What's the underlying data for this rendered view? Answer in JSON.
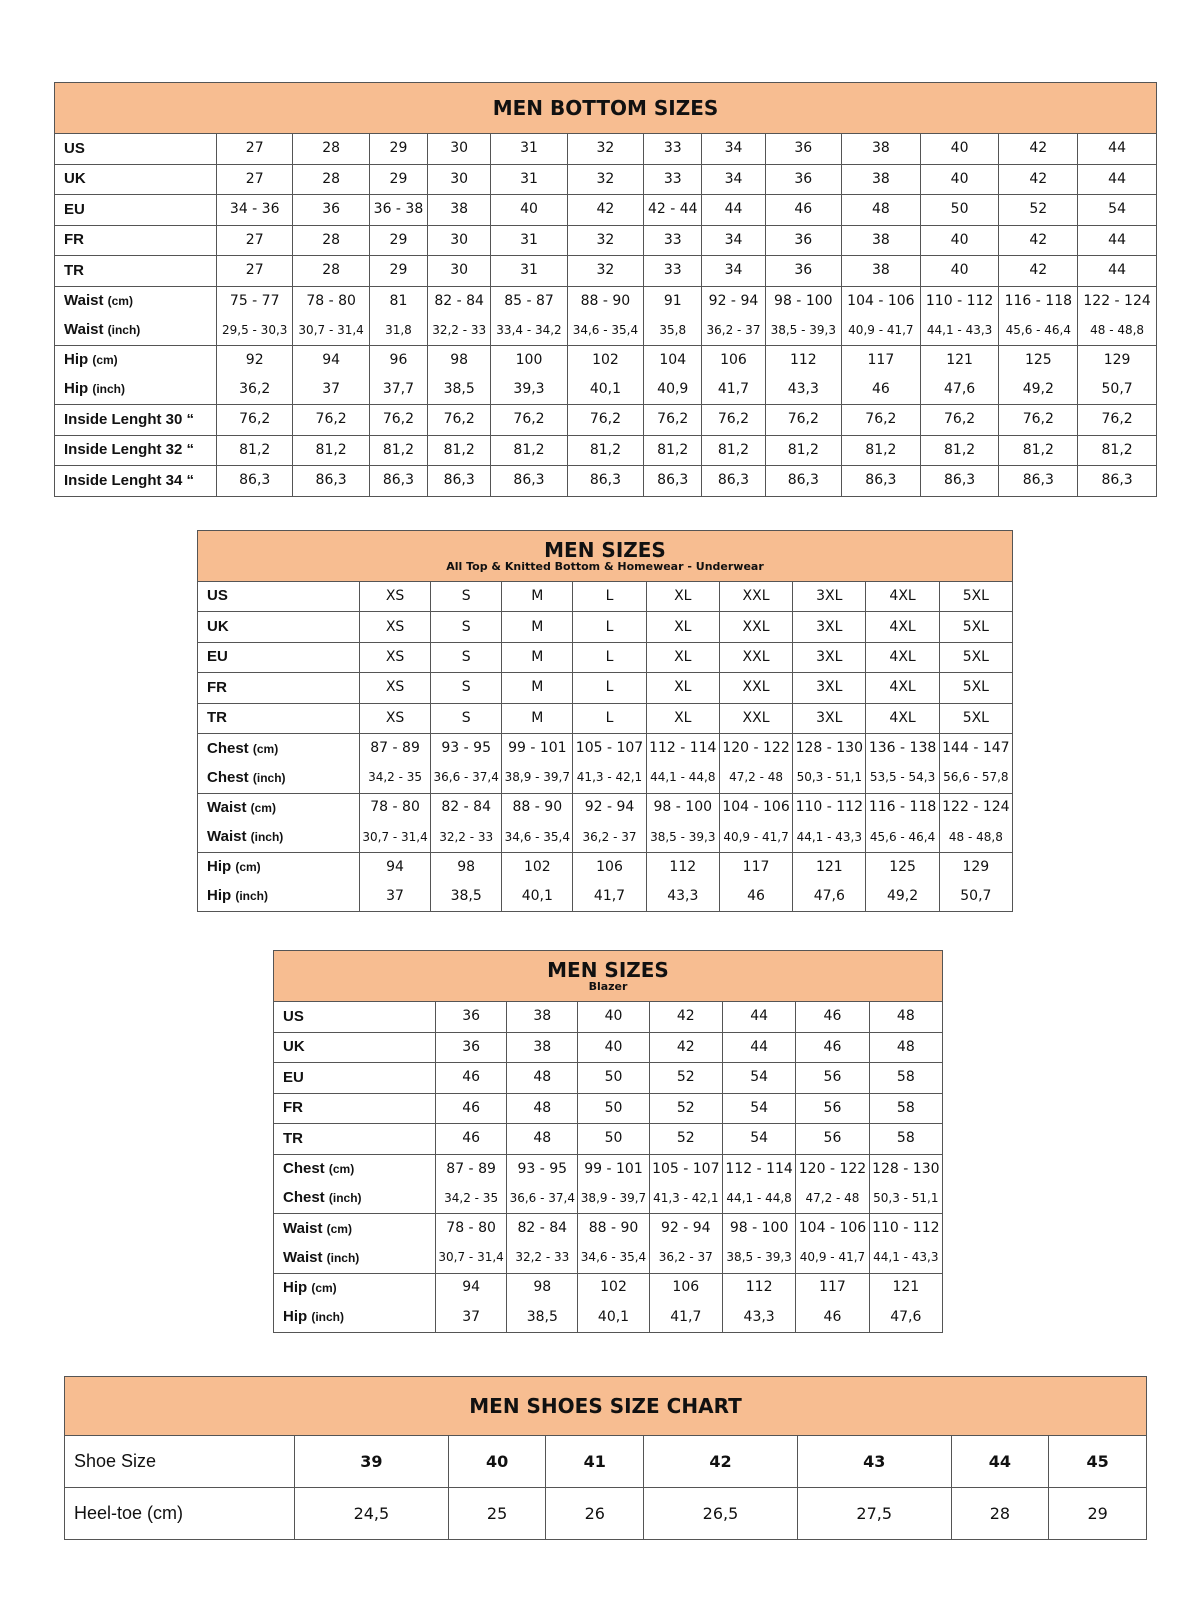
{
  "tables": [
    {
      "title": "MEN BOTTOM SIZES",
      "subtitle": "",
      "simple_rows": [
        {
          "label": "US",
          "values": [
            "27",
            "28",
            "29",
            "30",
            "31",
            "32",
            "33",
            "34",
            "36",
            "38",
            "40",
            "42",
            "44"
          ]
        },
        {
          "label": "UK",
          "values": [
            "27",
            "28",
            "29",
            "30",
            "31",
            "32",
            "33",
            "34",
            "36",
            "38",
            "40",
            "42",
            "44"
          ]
        },
        {
          "label": "EU",
          "values": [
            "34 - 36",
            "36",
            "36 - 38",
            "38",
            "40",
            "42",
            "42 - 44",
            "44",
            "46",
            "48",
            "50",
            "52",
            "54"
          ]
        },
        {
          "label": "FR",
          "values": [
            "27",
            "28",
            "29",
            "30",
            "31",
            "32",
            "33",
            "34",
            "36",
            "38",
            "40",
            "42",
            "44"
          ]
        },
        {
          "label": "TR",
          "values": [
            "27",
            "28",
            "29",
            "30",
            "31",
            "32",
            "33",
            "34",
            "36",
            "38",
            "40",
            "42",
            "44"
          ]
        }
      ],
      "groups": [
        {
          "rows": [
            {
              "label": "Waist",
              "unit": "(cm)",
              "values": [
                "75 - 77",
                "78 - 80",
                "81",
                "82 - 84",
                "85 - 87",
                "88 - 90",
                "91",
                "92 - 94",
                "98 - 100",
                "104 - 106",
                "110 - 112",
                "116 - 118",
                "122 - 124"
              ]
            },
            {
              "label": "Waist",
              "unit": "(inch)",
              "small": true,
              "values": [
                "29,5 - 30,3",
                "30,7 - 31,4",
                "31,8",
                "32,2 - 33",
                "33,4 - 34,2",
                "34,6 - 35,4",
                "35,8",
                "36,2 - 37",
                "38,5 - 39,3",
                "40,9 - 41,7",
                "44,1 - 43,3",
                "45,6 - 46,4",
                "48 - 48,8"
              ]
            }
          ]
        },
        {
          "rows": [
            {
              "label": "Hip",
              "unit": "(cm)",
              "values": [
                "92",
                "94",
                "96",
                "98",
                "100",
                "102",
                "104",
                "106",
                "112",
                "117",
                "121",
                "125",
                "129"
              ]
            },
            {
              "label": "Hip",
              "unit": "(inch)",
              "values": [
                "36,2",
                "37",
                "37,7",
                "38,5",
                "39,3",
                "40,1",
                "40,9",
                "41,7",
                "43,3",
                "46",
                "47,6",
                "49,2",
                "50,7"
              ]
            }
          ]
        }
      ],
      "tail_rows": [
        {
          "label": "Inside Lenght 30 “",
          "values": [
            "76,2",
            "76,2",
            "76,2",
            "76,2",
            "76,2",
            "76,2",
            "76,2",
            "76,2",
            "76,2",
            "76,2",
            "76,2",
            "76,2",
            "76,2"
          ]
        },
        {
          "label": "Inside Lenght 32 “",
          "values": [
            "81,2",
            "81,2",
            "81,2",
            "81,2",
            "81,2",
            "81,2",
            "81,2",
            "81,2",
            "81,2",
            "81,2",
            "81,2",
            "81,2",
            "81,2"
          ]
        },
        {
          "label": "Inside Lenght 34 “",
          "values": [
            "86,3",
            "86,3",
            "86,3",
            "86,3",
            "86,3",
            "86,3",
            "86,3",
            "86,3",
            "86,3",
            "86,3",
            "86,3",
            "86,3",
            "86,3"
          ]
        }
      ]
    },
    {
      "title": "MEN SIZES",
      "subtitle": "All Top & Knitted Bottom & Homewear - Underwear",
      "simple_rows": [
        {
          "label": "US",
          "values": [
            "XS",
            "S",
            "M",
            "L",
            "XL",
            "XXL",
            "3XL",
            "4XL",
            "5XL"
          ]
        },
        {
          "label": "UK",
          "values": [
            "XS",
            "S",
            "M",
            "L",
            "XL",
            "XXL",
            "3XL",
            "4XL",
            "5XL"
          ]
        },
        {
          "label": "EU",
          "values": [
            "XS",
            "S",
            "M",
            "L",
            "XL",
            "XXL",
            "3XL",
            "4XL",
            "5XL"
          ]
        },
        {
          "label": "FR",
          "values": [
            "XS",
            "S",
            "M",
            "L",
            "XL",
            "XXL",
            "3XL",
            "4XL",
            "5XL"
          ]
        },
        {
          "label": "TR",
          "values": [
            "XS",
            "S",
            "M",
            "L",
            "XL",
            "XXL",
            "3XL",
            "4XL",
            "5XL"
          ]
        }
      ],
      "groups": [
        {
          "rows": [
            {
              "label": "Chest",
              "unit": "(cm)",
              "values": [
                "87 - 89",
                "93 - 95",
                "99 - 101",
                "105 - 107",
                "112 - 114",
                "120 - 122",
                "128 - 130",
                "136 - 138",
                "144 - 147"
              ]
            },
            {
              "label": "Chest",
              "unit": "(inch)",
              "small": true,
              "values": [
                "34,2 - 35",
                "36,6 - 37,4",
                "38,9 - 39,7",
                "41,3 - 42,1",
                "44,1 - 44,8",
                "47,2 - 48",
                "50,3 - 51,1",
                "53,5 - 54,3",
                "56,6 - 57,8"
              ]
            }
          ]
        },
        {
          "rows": [
            {
              "label": "Waist",
              "unit": "(cm)",
              "values": [
                "78 - 80",
                "82 - 84",
                "88 - 90",
                "92 - 94",
                "98 - 100",
                "104 - 106",
                "110 - 112",
                "116 - 118",
                "122 - 124"
              ]
            },
            {
              "label": "Waist",
              "unit": "(inch)",
              "small": true,
              "values": [
                "30,7 - 31,4",
                "32,2 - 33",
                "34,6 - 35,4",
                "36,2 - 37",
                "38,5 - 39,3",
                "40,9 - 41,7",
                "44,1 - 43,3",
                "45,6 - 46,4",
                "48 - 48,8"
              ]
            }
          ]
        },
        {
          "rows": [
            {
              "label": "Hip",
              "unit": "(cm)",
              "values": [
                "94",
                "98",
                "102",
                "106",
                "112",
                "117",
                "121",
                "125",
                "129"
              ]
            },
            {
              "label": "Hip",
              "unit": "(inch)",
              "values": [
                "37",
                "38,5",
                "40,1",
                "41,7",
                "43,3",
                "46",
                "47,6",
                "49,2",
                "50,7"
              ]
            }
          ]
        }
      ],
      "tail_rows": []
    },
    {
      "title": "MEN SIZES",
      "subtitle": "Blazer",
      "simple_rows": [
        {
          "label": "US",
          "values": [
            "36",
            "38",
            "40",
            "42",
            "44",
            "46",
            "48"
          ]
        },
        {
          "label": "UK",
          "values": [
            "36",
            "38",
            "40",
            "42",
            "44",
            "46",
            "48"
          ]
        },
        {
          "label": "EU",
          "values": [
            "46",
            "48",
            "50",
            "52",
            "54",
            "56",
            "58"
          ]
        },
        {
          "label": "FR",
          "values": [
            "46",
            "48",
            "50",
            "52",
            "54",
            "56",
            "58"
          ]
        },
        {
          "label": "TR",
          "values": [
            "46",
            "48",
            "50",
            "52",
            "54",
            "56",
            "58"
          ]
        }
      ],
      "groups": [
        {
          "rows": [
            {
              "label": "Chest",
              "unit": "(cm)",
              "values": [
                "87 - 89",
                "93 - 95",
                "99 - 101",
                "105 - 107",
                "112 - 114",
                "120 - 122",
                "128 - 130"
              ]
            },
            {
              "label": "Chest",
              "unit": "(inch)",
              "small": true,
              "values": [
                "34,2 - 35",
                "36,6 - 37,4",
                "38,9 - 39,7",
                "41,3 - 42,1",
                "44,1 - 44,8",
                "47,2 - 48",
                "50,3 - 51,1"
              ]
            }
          ]
        },
        {
          "rows": [
            {
              "label": "Waist",
              "unit": "(cm)",
              "values": [
                "78 - 80",
                "82 - 84",
                "88 - 90",
                "92 - 94",
                "98 - 100",
                "104 - 106",
                "110 - 112"
              ]
            },
            {
              "label": "Waist",
              "unit": "(inch)",
              "small": true,
              "values": [
                "30,7 - 31,4",
                "32,2 - 33",
                "34,6 - 35,4",
                "36,2 - 37",
                "38,5 - 39,3",
                "40,9 - 41,7",
                "44,1 - 43,3"
              ]
            }
          ]
        },
        {
          "rows": [
            {
              "label": "Hip",
              "unit": "(cm)",
              "values": [
                "94",
                "98",
                "102",
                "106",
                "112",
                "117",
                "121"
              ]
            },
            {
              "label": "Hip",
              "unit": "(inch)",
              "values": [
                "37",
                "38,5",
                "40,1",
                "41,7",
                "43,3",
                "46",
                "47,6"
              ]
            }
          ]
        }
      ],
      "tail_rows": []
    }
  ],
  "shoes": {
    "title": "MEN SHOES SIZE CHART",
    "rows": [
      {
        "label": "Shoe Size",
        "values": [
          "39",
          "40",
          "41",
          "42",
          "43",
          "44",
          "45"
        ]
      },
      {
        "label": "Heel-toe (cm)",
        "values": [
          "24,5",
          "25",
          "26",
          "26,5",
          "27,5",
          "28",
          "29"
        ]
      }
    ]
  },
  "colors": {
    "header_bg": "#f7bd91",
    "border": "#555555"
  }
}
